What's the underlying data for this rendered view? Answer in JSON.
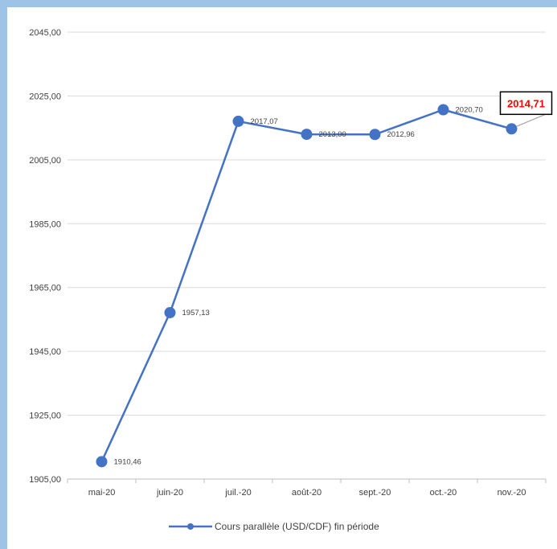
{
  "chart_data": {
    "type": "line",
    "categories": [
      "mai-20",
      "juin-20",
      "juil.-20",
      "août-20",
      "sept.-20",
      "oct.-20",
      "nov.-20"
    ],
    "series": [
      {
        "name": "Cours parallèle (USD/CDF) fin période",
        "values": [
          1910.46,
          1957.13,
          2017.07,
          2013.0,
          2012.96,
          2020.7,
          2014.71
        ],
        "labels": [
          "1910,46",
          "1957,13",
          "2017,07",
          "2013,00",
          "2012,96",
          "2020,70",
          "2014,71"
        ],
        "color": "#4472c4"
      }
    ],
    "y_ticks": [
      "1905,00",
      "1925,00",
      "1945,00",
      "1965,00",
      "1985,00",
      "2005,00",
      "2025,00",
      "2045,00"
    ],
    "ylim": [
      1905,
      2045
    ],
    "grid": true,
    "legend": "bottom",
    "highlight": {
      "index": 6,
      "label": "2014,71",
      "color": "#ff0000"
    }
  }
}
